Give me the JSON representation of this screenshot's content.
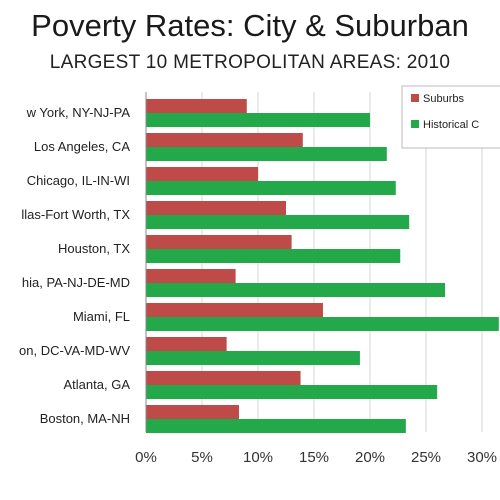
{
  "title": "Poverty Rates: City & Suburban",
  "subtitle": "LARGEST 10 METROPOLITAN AREAS: 2010",
  "chart_data": {
    "type": "bar",
    "orientation": "horizontal",
    "title": "Poverty Rates: City & Suburban",
    "subtitle": "LARGEST 10 METROPOLITAN AREAS: 2010",
    "xlabel": "",
    "ylabel": "",
    "xlim": [
      0,
      30
    ],
    "x_ticks": [
      "0%",
      "5%",
      "10%",
      "15%",
      "20%",
      "25%",
      "30%"
    ],
    "grid": true,
    "legend": "top-right",
    "categories": [
      "New York, NY-NJ-PA",
      "Los Angeles, CA",
      "Chicago, IL-IN-WI",
      "Dallas-Fort Worth, TX",
      "Houston, TX",
      "Philadelphia, PA-NJ-DE-MD",
      "Miami, FL",
      "Washington, DC-VA-MD-WV",
      "Atlanta, GA",
      "Boston, MA-NH"
    ],
    "category_labels_visible": [
      "w York, NY-NJ-PA",
      "Los Angeles, CA",
      "Chicago, IL-IN-WI",
      "llas-Fort Worth, TX",
      "Houston, TX",
      "hia, PA-NJ-DE-MD",
      "Miami, FL",
      "on, DC-VA-MD-WV",
      "Atlanta, GA",
      "Boston, MA-NH"
    ],
    "series": [
      {
        "name": "Suburbs",
        "color": "#be4b48",
        "values": [
          9.0,
          14.0,
          10.0,
          12.5,
          13.0,
          8.0,
          15.8,
          7.2,
          13.8,
          8.3
        ]
      },
      {
        "name": "Historical C",
        "color": "#23a84a",
        "values": [
          20.0,
          21.5,
          22.3,
          23.5,
          22.7,
          26.7,
          31.5,
          19.1,
          26.0,
          23.2
        ]
      }
    ]
  }
}
